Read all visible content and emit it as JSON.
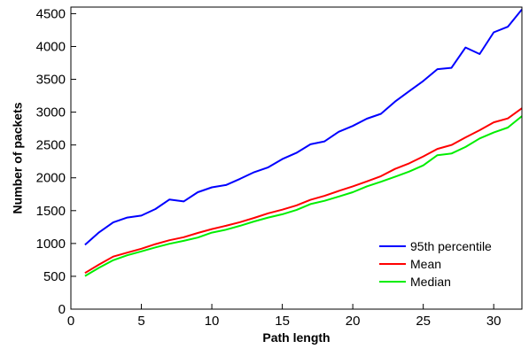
{
  "chart_data": {
    "type": "line",
    "xlabel": "Path length",
    "ylabel": "Number of packets",
    "xlim": [
      0,
      32
    ],
    "ylim": [
      0,
      4600
    ],
    "xticks": [
      0,
      5,
      10,
      15,
      20,
      25,
      30
    ],
    "yticks": [
      0,
      500,
      1000,
      1500,
      2000,
      2500,
      3000,
      3500,
      4000,
      4500
    ],
    "grid": false,
    "legend_position": "bottom-right",
    "x": [
      1,
      2,
      3,
      4,
      5,
      6,
      7,
      8,
      9,
      10,
      11,
      12,
      13,
      14,
      15,
      16,
      17,
      18,
      19,
      20,
      21,
      22,
      23,
      24,
      25,
      26,
      27,
      28,
      29,
      30,
      31,
      32
    ],
    "series": [
      {
        "name": "95th percentile",
        "color": "#0000ff",
        "values": [
          980,
          1170,
          1320,
          1395,
          1425,
          1525,
          1670,
          1640,
          1780,
          1855,
          1890,
          1985,
          2085,
          2160,
          2285,
          2380,
          2510,
          2555,
          2700,
          2790,
          2900,
          2975,
          3160,
          3320,
          3475,
          3655,
          3675,
          3985,
          3885,
          4215,
          4300,
          4565
        ]
      },
      {
        "name": "Mean",
        "color": "#ff0000",
        "values": [
          550,
          680,
          800,
          860,
          920,
          990,
          1050,
          1095,
          1160,
          1220,
          1270,
          1325,
          1390,
          1460,
          1515,
          1580,
          1665,
          1725,
          1800,
          1870,
          1945,
          2025,
          2135,
          2220,
          2325,
          2440,
          2500,
          2615,
          2725,
          2845,
          2905,
          3060
        ]
      },
      {
        "name": "Median",
        "color": "#00ee00",
        "values": [
          505,
          630,
          745,
          820,
          880,
          940,
          995,
          1040,
          1090,
          1165,
          1210,
          1270,
          1335,
          1395,
          1445,
          1510,
          1600,
          1650,
          1715,
          1780,
          1870,
          1940,
          2015,
          2095,
          2190,
          2345,
          2370,
          2470,
          2600,
          2690,
          2765,
          2940
        ]
      }
    ]
  }
}
